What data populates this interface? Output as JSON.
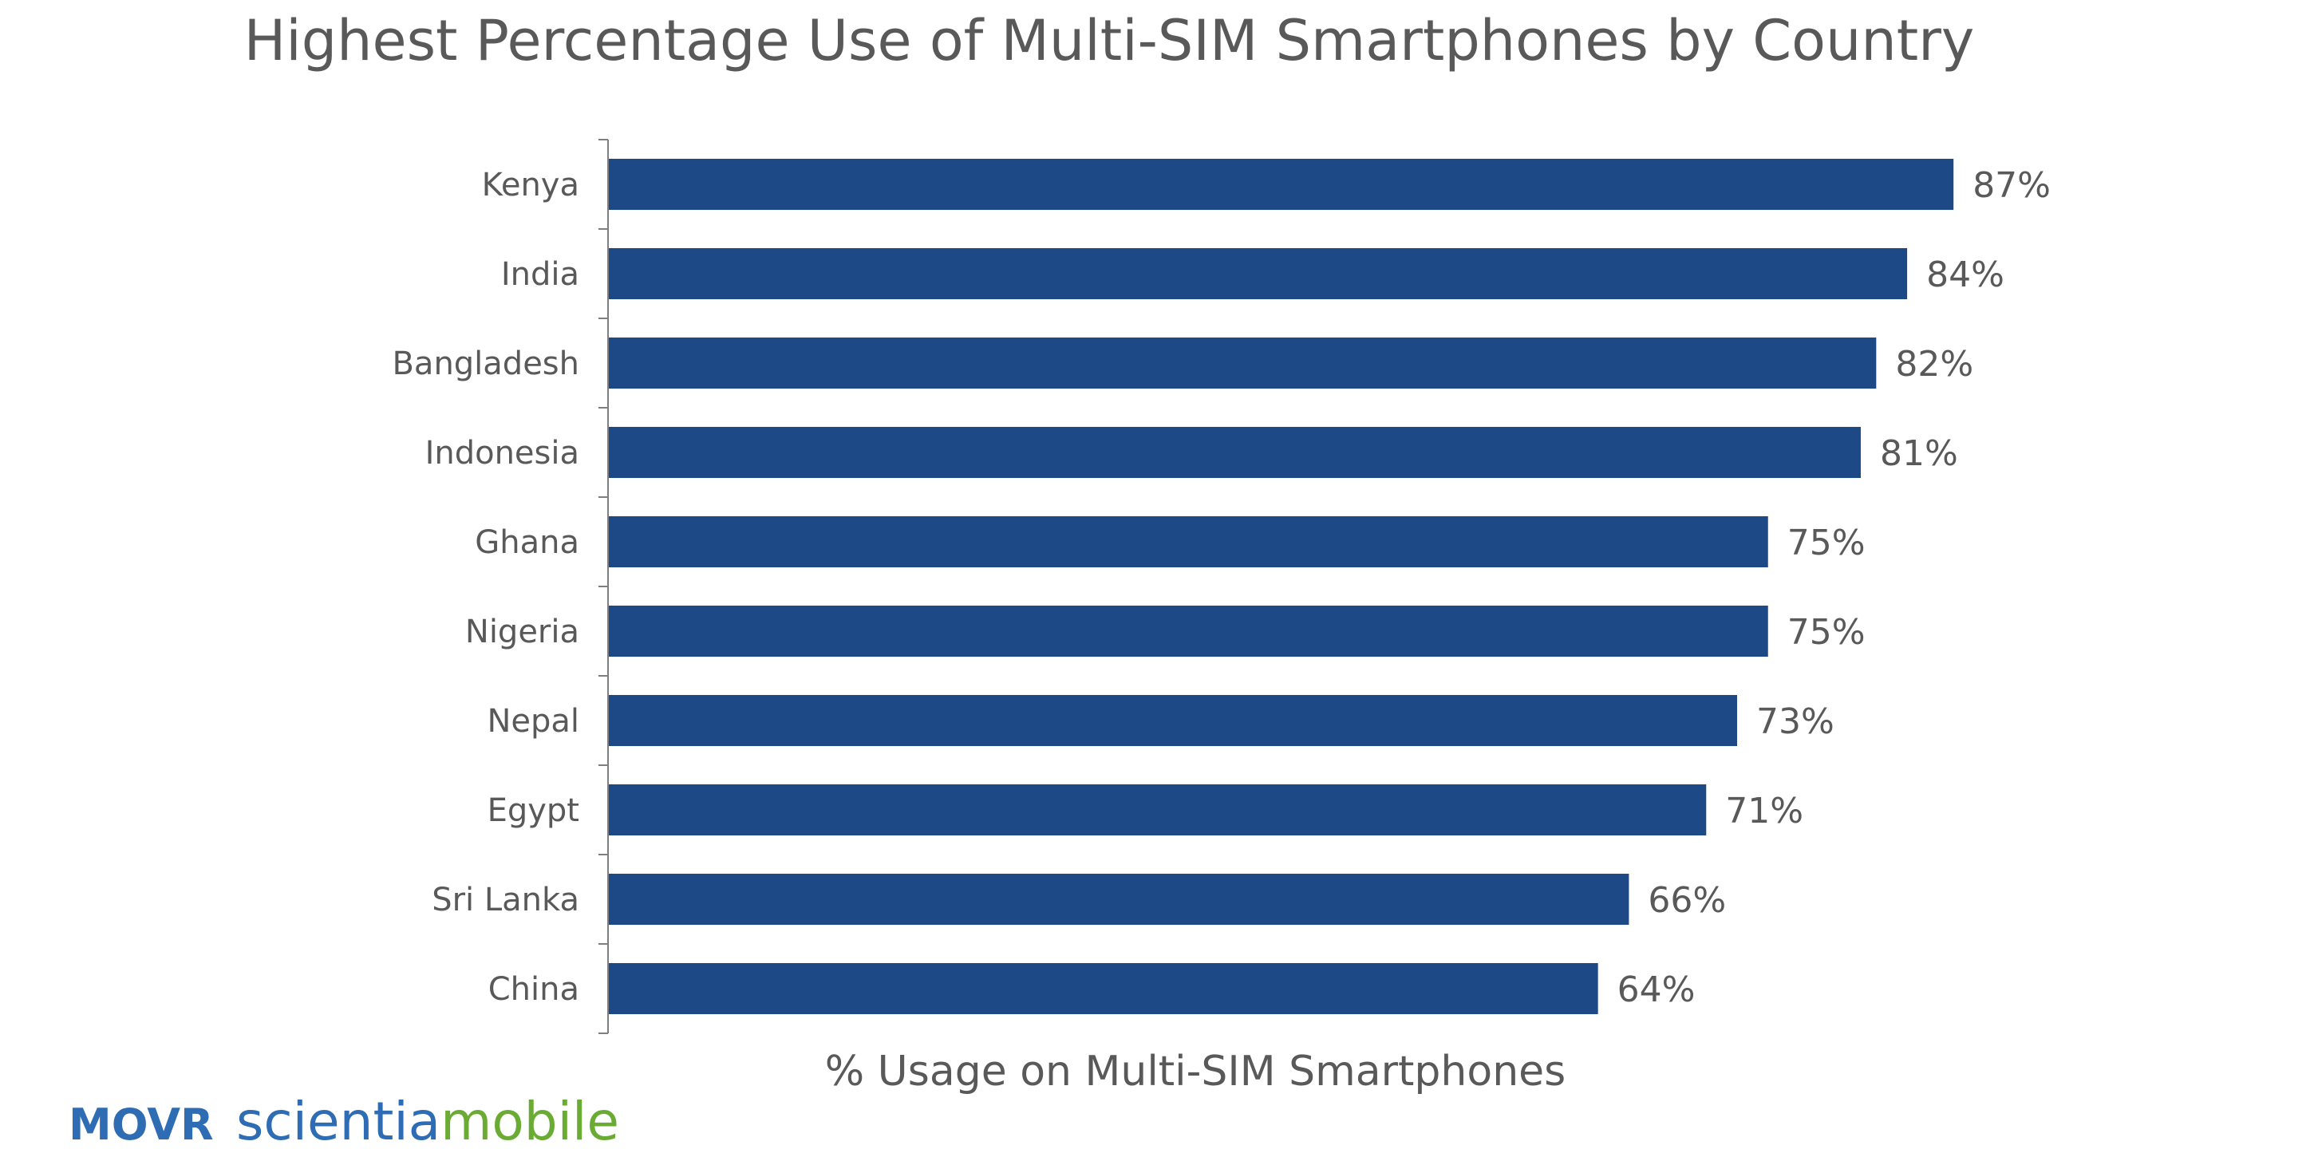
{
  "chart_data": {
    "type": "bar",
    "orientation": "horizontal",
    "title": "Highest Percentage Use of Multi-SIM Smartphones by Country",
    "xlabel": "% Usage on Multi-SIM Smartphones",
    "ylabel": "",
    "categories": [
      "Kenya",
      "India",
      "Bangladesh",
      "Indonesia",
      "Ghana",
      "Nigeria",
      "Nepal",
      "Egypt",
      "Sri Lanka",
      "China"
    ],
    "values": [
      87,
      84,
      82,
      81,
      75,
      75,
      73,
      71,
      66,
      64
    ],
    "data_labels": [
      "87%",
      "84%",
      "82%",
      "81%",
      "75%",
      "75%",
      "73%",
      "71%",
      "66%",
      "64%"
    ],
    "value_unit": "%",
    "xlim": [
      0,
      100
    ],
    "grid": false,
    "legend": "none",
    "bar_color": "#1d4a87"
  },
  "logo": {
    "movr": "MOVR",
    "scientia": "scientia",
    "mobile": "mobile"
  },
  "colors": {
    "text": "#595959",
    "axis": "#7f7f7f",
    "logo_blue": "#2e6db3",
    "logo_green": "#6aab34"
  }
}
